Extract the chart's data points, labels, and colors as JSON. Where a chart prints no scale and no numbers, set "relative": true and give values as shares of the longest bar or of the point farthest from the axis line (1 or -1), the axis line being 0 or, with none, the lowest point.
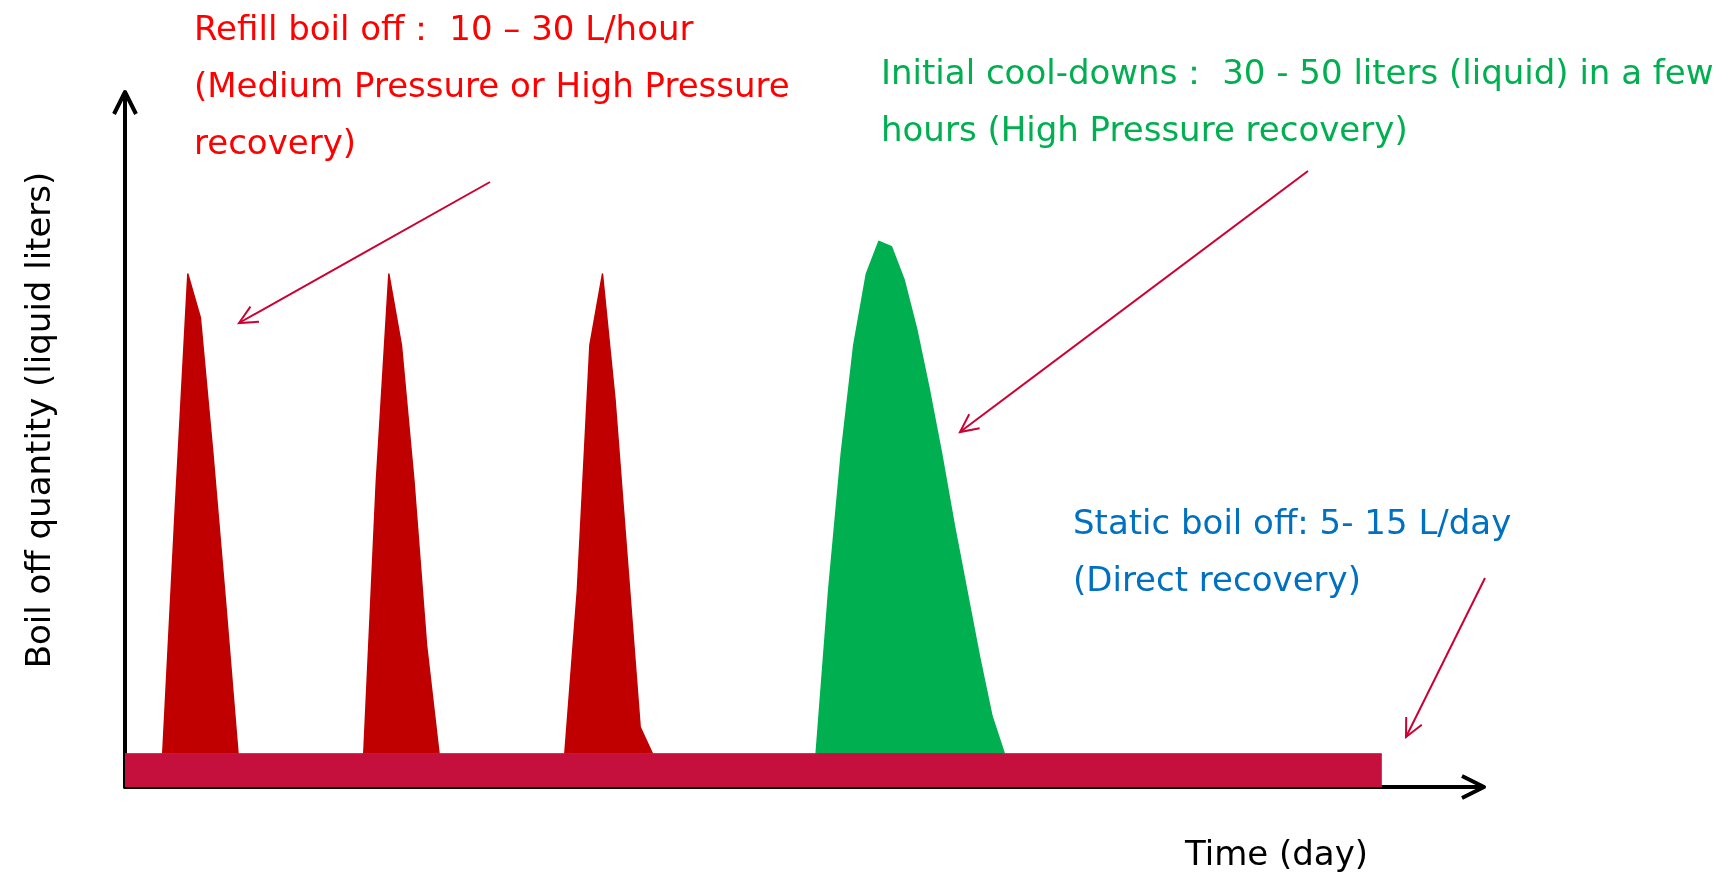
{
  "chart_data": {
    "type": "area",
    "relative": true,
    "xlabel": "Time (day)",
    "ylabel": "Boil off quantity (liquid liters)",
    "annotations": [
      "Refill boil off：  10 – 30 L/hour (Medium Pressure or High Pressure recovery)",
      "Initial cool-downs：  30 - 50 liters (liquid) in a few hours (High Pressure recovery)",
      "Static boil off: 5- 15 L/day (Direct recovery)"
    ],
    "categories": [
      null,
      null,
      null,
      null,
      null,
      null,
      null,
      null,
      null,
      null,
      null,
      null,
      null,
      null,
      null,
      null,
      null,
      null,
      null,
      null,
      null,
      null,
      null,
      null,
      null,
      null,
      null,
      null,
      null,
      null,
      null,
      null,
      null,
      null,
      null,
      null,
      null,
      null,
      null,
      null,
      null,
      null,
      null,
      null,
      null,
      null,
      null,
      null,
      null,
      null,
      null,
      null,
      null,
      null,
      null,
      null,
      null,
      null,
      null,
      null,
      null,
      null,
      null,
      null,
      null,
      null,
      null,
      null,
      null,
      null,
      null,
      null,
      null,
      null,
      null,
      null,
      null,
      null,
      null,
      null,
      null,
      null,
      null,
      null,
      null,
      null,
      null,
      null,
      null,
      null,
      null,
      null,
      null,
      null,
      null,
      null,
      null,
      null,
      null,
      null,
      null,
      null,
      null,
      null,
      null,
      null,
      null,
      null,
      null
    ],
    "series": [
      {
        "color": "#c00000",
        "values": [
          0.06,
          0.06,
          0.06,
          0.06,
          0.51,
          0.94,
          0.86,
          0.61,
          0.34,
          0.06,
          0.06,
          0.06,
          0.06,
          0.06,
          0.06,
          0.06,
          0.06,
          0.06,
          0.06,
          0.06,
          0.56,
          0.94,
          0.81,
          0.56,
          0.26,
          0.06,
          0.06,
          0.06,
          0.06,
          0.06,
          0.06,
          0.06,
          0.06,
          0.06,
          0.06,
          0.06,
          0.36,
          0.81,
          0.94,
          0.71,
          0.41,
          0.11,
          0.06,
          0.06,
          0.06,
          0.06,
          0.06,
          0.06,
          0.06,
          0.06,
          0.06,
          0.06,
          0.06,
          0.06,
          0.06,
          0.06,
          0.06,
          0.06,
          0.06,
          0.06,
          0.06,
          0.06,
          0.06,
          0.06,
          0.06,
          0.06,
          0.06,
          0.06,
          0.06,
          0.06,
          0.06,
          0.06,
          0.06,
          0.06,
          0.06,
          0.06,
          0.06,
          0.06,
          0.06,
          0.06,
          0.06,
          0.06,
          0.06,
          0.06,
          0.06,
          0.06,
          0.06,
          0.06,
          0.06,
          0.06,
          0.06,
          0.06,
          0.06,
          0.06,
          0.06,
          0.06,
          0.06,
          0.06,
          0.06,
          0.06,
          0.06,
          null,
          null,
          null,
          null,
          null,
          null,
          null,
          null
        ]
      },
      {
        "color": "#00b050",
        "values": [
          0.06,
          0.06,
          0.06,
          0.06,
          0.06,
          0.06,
          0.06,
          0.06,
          0.06,
          0.06,
          0.06,
          0.06,
          0.06,
          0.06,
          0.06,
          0.06,
          0.06,
          0.06,
          0.06,
          0.06,
          0.06,
          0.06,
          0.06,
          0.06,
          0.06,
          0.06,
          0.06,
          0.06,
          0.06,
          0.06,
          0.06,
          0.06,
          0.06,
          0.06,
          0.06,
          0.06,
          0.06,
          0.06,
          0.06,
          0.06,
          0.06,
          0.06,
          0.06,
          0.06,
          0.06,
          0.06,
          0.06,
          0.06,
          0.06,
          0.06,
          0.06,
          0.06,
          0.06,
          0.06,
          0.06,
          0.06,
          0.36,
          0.61,
          0.81,
          0.94,
          1,
          0.99,
          0.93,
          0.84,
          0.73,
          0.61,
          0.48,
          0.36,
          0.24,
          0.13,
          0.06,
          0.06,
          0.06,
          0.06,
          0.06,
          0.06,
          0.06,
          0.06,
          0.06,
          0.06,
          0.06,
          0.06,
          0.06,
          0.06,
          0.06,
          0.06,
          0.06,
          0.06,
          0.06,
          0.06,
          0.06,
          0.06,
          0.06,
          0.06,
          0.06,
          0.06,
          0.06,
          0.06,
          0.06,
          0.06,
          0.06,
          null,
          null,
          null,
          null,
          null,
          null,
          null,
          null
        ]
      },
      {
        "color": "#c50f3c",
        "values": [
          0.06,
          0.06,
          0.06,
          0.06,
          0.06,
          0.06,
          0.06,
          0.06,
          0.06,
          0.06,
          0.06,
          0.06,
          0.06,
          0.06,
          0.06,
          0.06,
          0.06,
          0.06,
          0.06,
          0.06,
          0.06,
          0.06,
          0.06,
          0.06,
          0.06,
          0.06,
          0.06,
          0.06,
          0.06,
          0.06,
          0.06,
          0.06,
          0.06,
          0.06,
          0.06,
          0.06,
          0.06,
          0.06,
          0.06,
          0.06,
          0.06,
          0.06,
          0.06,
          0.06,
          0.06,
          0.06,
          0.06,
          0.06,
          0.06,
          0.06,
          0.06,
          0.06,
          0.06,
          0.06,
          0.06,
          0.06,
          0.06,
          0.06,
          0.06,
          0.06,
          0.06,
          0.06,
          0.06,
          0.06,
          0.06,
          0.06,
          0.06,
          0.06,
          0.06,
          0.06,
          0.06,
          0.06,
          0.06,
          0.06,
          0.06,
          0.06,
          0.06,
          0.06,
          0.06,
          0.06,
          0.06,
          0.06,
          0.06,
          0.06,
          0.06,
          0.06,
          0.06,
          0.06,
          0.06,
          0.06,
          0.06,
          0.06,
          0.06,
          0.06,
          0.06,
          0.06,
          0.06,
          0.06,
          0.06,
          0.06,
          0.06,
          null,
          null,
          null,
          null,
          null,
          null,
          null,
          null
        ]
      }
    ]
  }
}
